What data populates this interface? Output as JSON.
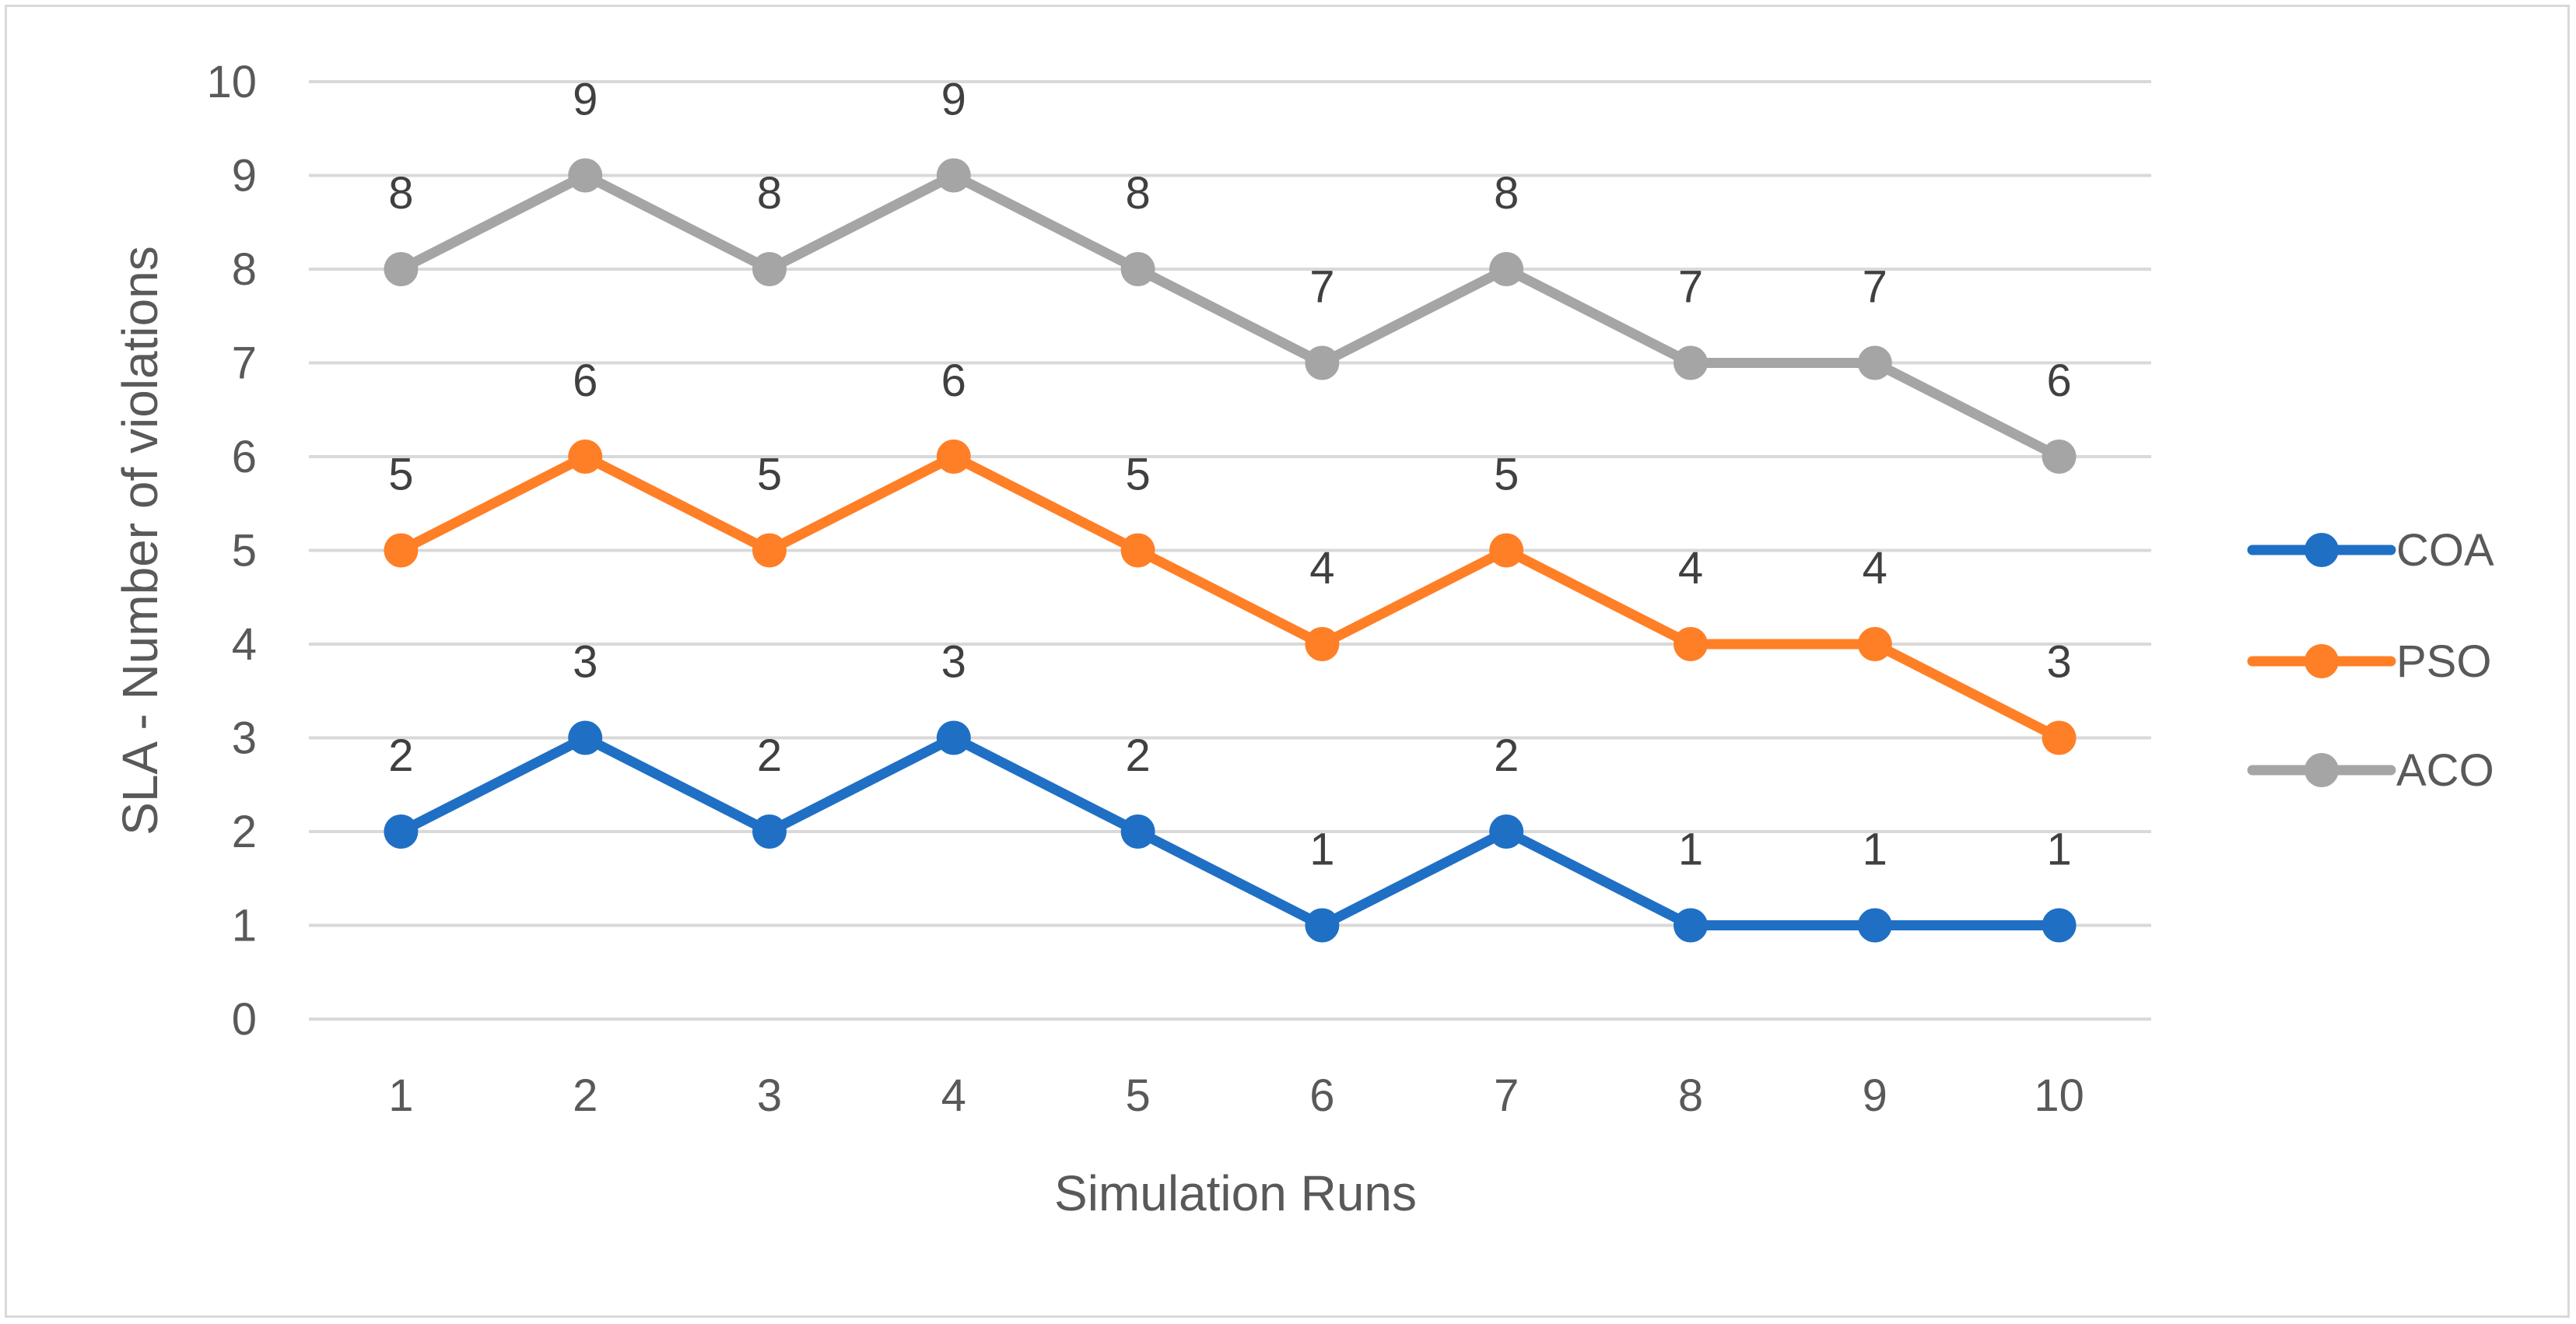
{
  "chart_data": {
    "type": "line",
    "title": "",
    "xlabel": "Simulation Runs",
    "ylabel": "SLA  - Number of violations",
    "categories": [
      "1",
      "2",
      "3",
      "4",
      "5",
      "6",
      "7",
      "8",
      "9",
      "10"
    ],
    "ylim": [
      0,
      10
    ],
    "yticks": [
      "0",
      "1",
      "2",
      "3",
      "4",
      "5",
      "6",
      "7",
      "8",
      "9",
      "10"
    ],
    "grid": "horizontal",
    "legend_position": "right",
    "data_labels": "above",
    "series": [
      {
        "name": "COA",
        "color": "#1f6fc5",
        "values": [
          2,
          3,
          2,
          3,
          2,
          1,
          2,
          1,
          1,
          1
        ]
      },
      {
        "name": "PSO",
        "color": "#ff7f27",
        "values": [
          5,
          6,
          5,
          6,
          5,
          4,
          5,
          4,
          4,
          3
        ]
      },
      {
        "name": "ACO",
        "color": "#a5a5a5",
        "values": [
          8,
          9,
          8,
          9,
          8,
          7,
          8,
          7,
          7,
          6
        ]
      }
    ]
  }
}
